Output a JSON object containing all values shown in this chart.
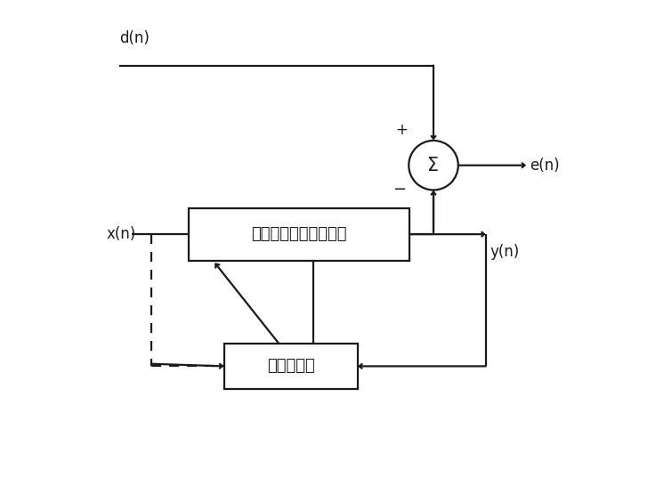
{
  "fig_width": 7.55,
  "fig_height": 5.37,
  "dpi": 100,
  "background_color": "#ffffff",
  "line_color": "#1a1a1a",
  "text_color": "#1a1a1a",
  "label_dn": "d(n)",
  "label_xn": "x(n)",
  "label_en": "e(n)",
  "label_yn": "y(n)",
  "label_filter": "参数可调的数字滤波器",
  "label_adaptive": "自适应算法",
  "label_sigma": "Σ",
  "label_plus": "+",
  "label_minus": "−",
  "font_size_labels": 12,
  "font_size_chinese": 13,
  "font_size_sigma": 15,
  "lw": 1.6
}
